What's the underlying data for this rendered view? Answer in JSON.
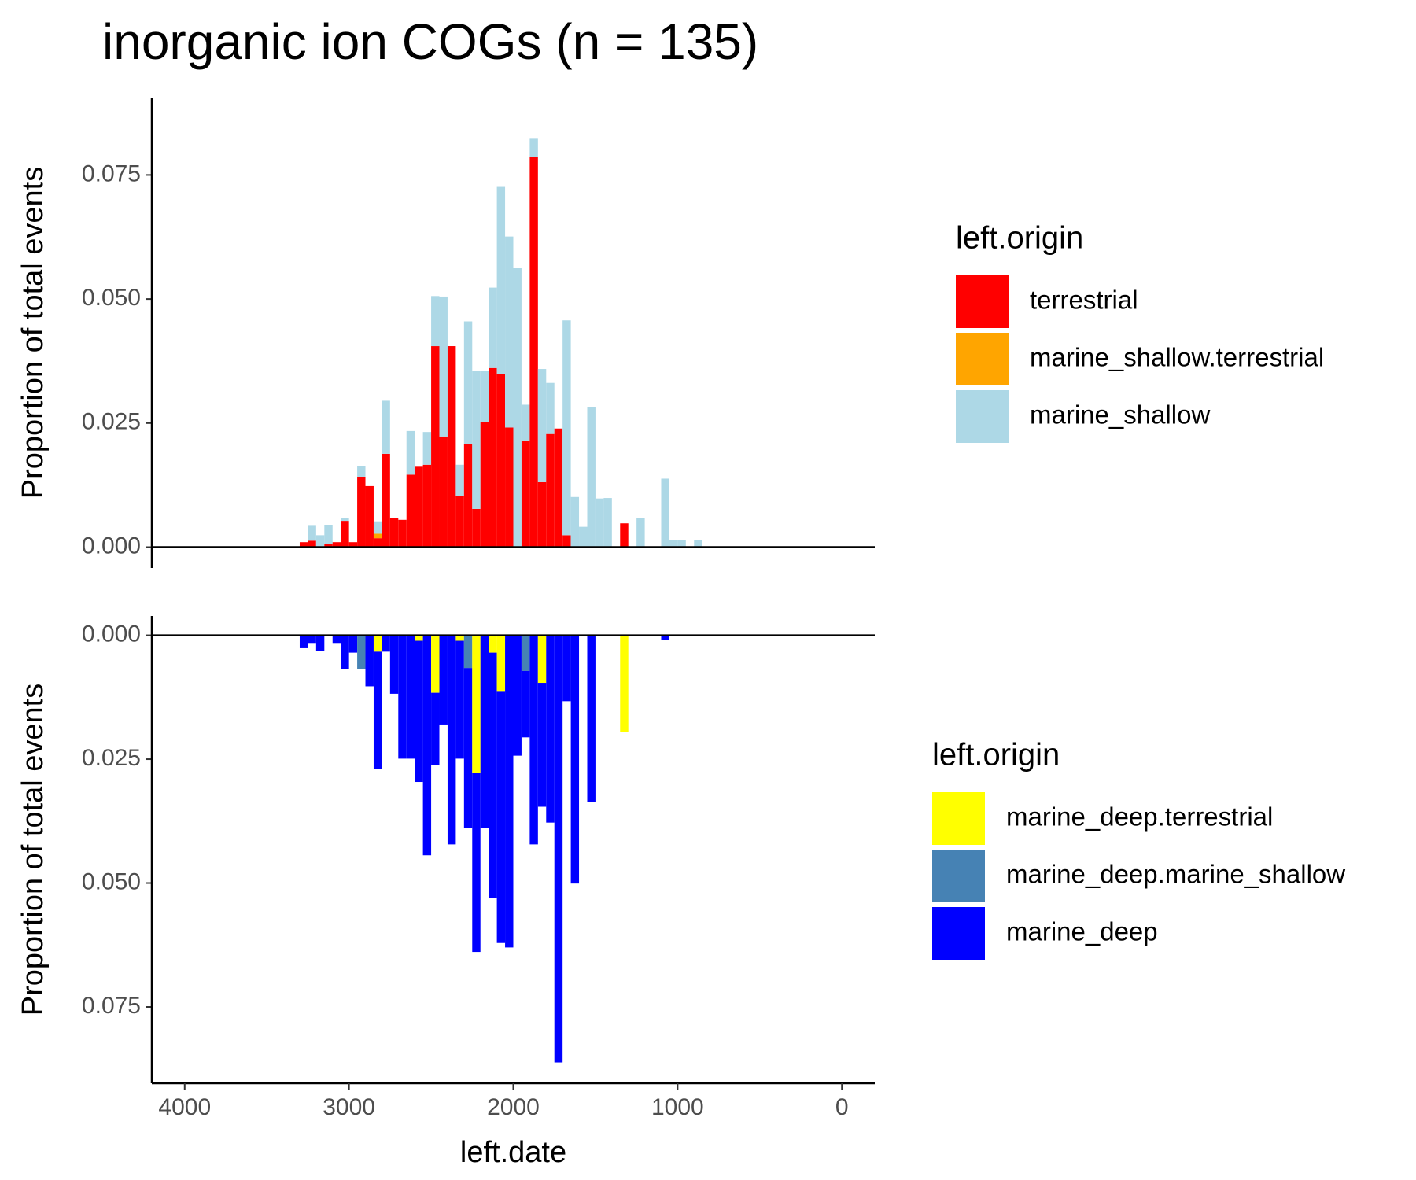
{
  "chart_data": [
    {
      "type": "histogram",
      "title": "inorganic ion COGs (n = 135)",
      "ylabel": "Proportion of total events",
      "legend_title": "left.origin",
      "bins": [
        3300,
        3250,
        3200,
        3150,
        3100,
        3050,
        3000,
        2950,
        2900,
        2850,
        2800,
        2750,
        2700,
        2650,
        2600,
        2550,
        2500,
        2450,
        2400,
        2350,
        2300,
        2250,
        2200,
        2150,
        2100,
        2050,
        2000,
        1950,
        1900,
        1850,
        1800,
        1750,
        1700,
        1650,
        1600,
        1550,
        1500,
        1450,
        1400,
        1350,
        1300,
        1250,
        1200,
        1150,
        1100,
        1050,
        1000,
        950,
        900,
        850
      ],
      "xlim": [
        4200,
        -200
      ],
      "ylim": [
        -0.0042,
        0.0906
      ],
      "yticks": [
        {
          "value": 0,
          "label": "0.000"
        },
        {
          "value": 0.025,
          "label": "0.025"
        },
        {
          "value": 0.05,
          "label": "0.050"
        },
        {
          "value": 0.075,
          "label": "0.075"
        }
      ],
      "series": [
        {
          "name": "terrestrial",
          "color": "#ff0000",
          "values": [
            0.001,
            0.0013,
            0,
            0.0006,
            0.001,
            0.0053,
            0.001,
            0.0142,
            0.0123,
            0.0018,
            0.0188,
            0.0059,
            0.0055,
            0.0146,
            0.0162,
            0.0166,
            0.0405,
            0.0223,
            0.0405,
            0.0103,
            0.0208,
            0.0077,
            0.0252,
            0.0361,
            0.0348,
            0.0241,
            0,
            0.0215,
            0.0786,
            0.0131,
            0.0228,
            0.0239,
            0.0024,
            0,
            0,
            0,
            0,
            0,
            0,
            0.0048,
            0,
            0,
            0,
            0,
            0,
            0,
            0,
            0,
            0
          ]
        },
        {
          "name": "marine_shallow.terrestrial",
          "color": "#ffa500",
          "values": [
            0,
            0,
            0,
            0,
            0,
            0,
            0,
            0,
            0,
            0.0009,
            0,
            0,
            0,
            0,
            0,
            0,
            0,
            0,
            0,
            0,
            0,
            0,
            0,
            0,
            0,
            0,
            0,
            0,
            0,
            0,
            0,
            0,
            0,
            0,
            0,
            0,
            0,
            0,
            0,
            0,
            0,
            0,
            0,
            0,
            0,
            0,
            0,
            0,
            0
          ]
        },
        {
          "name": "marine_shallow",
          "color": "#add8e6",
          "values": [
            0,
            0.003,
            0.0024,
            0.0038,
            0,
            0.0006,
            0,
            0.0022,
            0,
            0.0025,
            0.0107,
            0,
            0,
            0.0088,
            0,
            0.0066,
            0.0101,
            0.0282,
            0,
            0.0063,
            0.0247,
            0.0278,
            0.0103,
            0.0162,
            0.0378,
            0.0385,
            0.0562,
            0.0072,
            0.0037,
            0.0228,
            0.0103,
            0,
            0.0433,
            0.0101,
            0.0041,
            0.0282,
            0.0098,
            0.0099,
            0,
            0,
            0,
            0.0059,
            0,
            0,
            0.0138,
            0.0015,
            0.0015,
            0,
            0.0015
          ]
        }
      ]
    },
    {
      "type": "histogram",
      "ylabel": "Proportion of total events",
      "xlabel": "left.date",
      "legend_title": "left.origin",
      "bins": [
        3300,
        3250,
        3200,
        3150,
        3100,
        3050,
        3000,
        2950,
        2900,
        2850,
        2800,
        2750,
        2700,
        2650,
        2600,
        2550,
        2500,
        2450,
        2400,
        2350,
        2300,
        2250,
        2200,
        2150,
        2100,
        2050,
        2000,
        1950,
        1900,
        1850,
        1800,
        1750,
        1700,
        1650,
        1600,
        1550,
        1500,
        1450,
        1400,
        1350,
        1300,
        1250,
        1200,
        1150,
        1100,
        1050,
        1000,
        950,
        900,
        850
      ],
      "xlim": [
        4200,
        -200
      ],
      "ylim": [
        0.0904,
        -0.0039
      ],
      "xticks": [
        4000,
        3000,
        2000,
        1000,
        0
      ],
      "yticks": [
        {
          "value": 0,
          "label": "0.000"
        },
        {
          "value": 0.025,
          "label": "0.025"
        },
        {
          "value": 0.05,
          "label": "0.050"
        },
        {
          "value": 0.075,
          "label": "0.075"
        }
      ],
      "series": [
        {
          "name": "marine_deep.terrestrial",
          "color": "#ffff00",
          "values": [
            0,
            0,
            0,
            0,
            0,
            0,
            0,
            0,
            0,
            0.0033,
            0,
            0,
            0,
            0,
            0.0011,
            0,
            0.0116,
            0,
            0,
            0.0011,
            0,
            0.0278,
            0,
            0.0035,
            0.0114,
            0,
            0,
            0,
            0,
            0.0096,
            0,
            0,
            0,
            0,
            0,
            0,
            0,
            0,
            0,
            0.0195,
            0,
            0,
            0,
            0,
            0,
            0,
            0,
            0,
            0
          ]
        },
        {
          "name": "marine_deep.marine_shallow",
          "color": "#4682b4",
          "values": [
            0,
            0,
            0,
            0,
            0,
            0,
            0,
            0.0068,
            0,
            0,
            0,
            0,
            0,
            0,
            0,
            0,
            0,
            0,
            0,
            0,
            0.0066,
            0,
            0,
            0,
            0,
            0,
            0,
            0.0072,
            0,
            0,
            0,
            0,
            0,
            0,
            0,
            0,
            0,
            0,
            0,
            0,
            0,
            0,
            0,
            0,
            0,
            0,
            0,
            0,
            0
          ]
        },
        {
          "name": "marine_deep",
          "color": "#0000ff",
          "values": [
            0.0026,
            0.0017,
            0.0031,
            0,
            0.0017,
            0.0068,
            0.0035,
            0,
            0.0103,
            0.0237,
            0.0033,
            0.0118,
            0.0249,
            0.0249,
            0.0285,
            0.0444,
            0.0146,
            0.018,
            0.0422,
            0.0238,
            0.0323,
            0.0361,
            0.0389,
            0.0495,
            0.0507,
            0.063,
            0.0243,
            0.0134,
            0.0422,
            0.025,
            0.0378,
            0.0862,
            0.0133,
            0.0501,
            0,
            0.0337,
            0,
            0,
            0,
            0,
            0,
            0,
            0,
            0,
            0.0009,
            0,
            0,
            0,
            0
          ]
        }
      ]
    }
  ]
}
